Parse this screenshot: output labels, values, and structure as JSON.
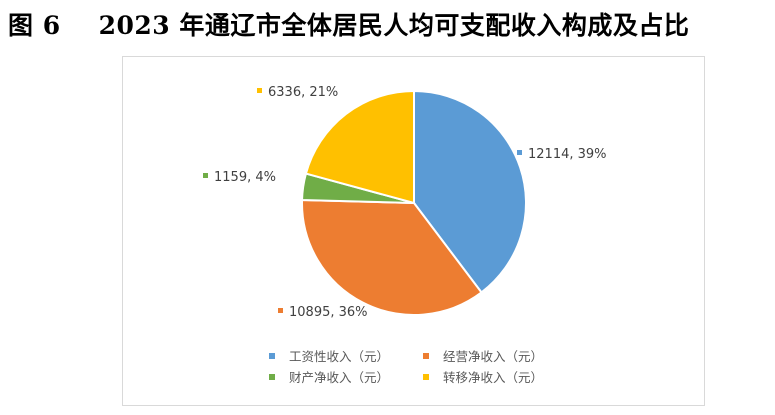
{
  "figure": {
    "number": "图 6",
    "title": "2023 年通辽市全体居民人均可支配收入构成及占比"
  },
  "chart_data": {
    "type": "pie",
    "title": "",
    "slices": [
      {
        "name": "工资性收入（元）",
        "value": 12114,
        "percent": "39%",
        "label": "12114, 39%",
        "color": "#5b9bd5"
      },
      {
        "name": "经营净收入（元）",
        "value": 10895,
        "percent": "36%",
        "label": "10895, 36%",
        "color": "#ed7d31"
      },
      {
        "name": "财产净收入（元）",
        "value": 1159,
        "percent": "4%",
        "label": "1159, 4%",
        "color": "#70ad47"
      },
      {
        "name": "转移净收入（元）",
        "value": 6336,
        "percent": "21%",
        "label": "6336, 21%",
        "color": "#ffc000"
      }
    ],
    "start_angle": "12 o'clock",
    "direction": "clockwise",
    "legend_position": "bottom"
  }
}
